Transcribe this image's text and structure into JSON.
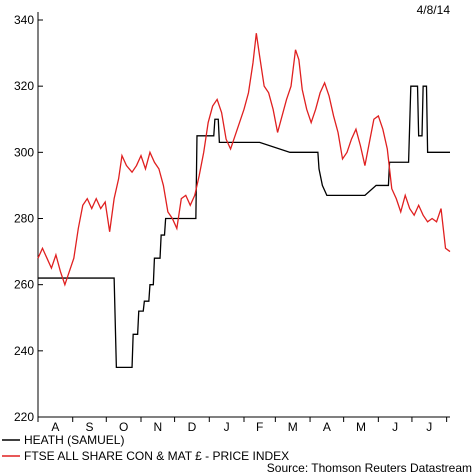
{
  "date_label": "4/8/14",
  "source": "Source: Thomson Reuters Datastream",
  "chart_data": {
    "type": "line",
    "title": "",
    "xlabel": "",
    "ylabel": "",
    "ylim": [
      220,
      340
    ],
    "yticks": [
      220,
      240,
      260,
      280,
      300,
      320,
      340
    ],
    "x_months": [
      "A",
      "S",
      "O",
      "N",
      "D",
      "J",
      "F",
      "M",
      "A",
      "M",
      "J",
      "J"
    ],
    "x_start": "2013-08-01",
    "x_end": "2014-08-04",
    "grid": false,
    "legend_position": "bottom-left",
    "series": [
      {
        "name": "HEATH (SAMUEL)",
        "color": "#000000",
        "step": true,
        "points": [
          [
            "2013-08-01",
            262
          ],
          [
            "2013-09-15",
            262
          ],
          [
            "2013-10-08",
            262
          ],
          [
            "2013-10-10",
            235
          ],
          [
            "2013-10-24",
            235
          ],
          [
            "2013-10-25",
            245
          ],
          [
            "2013-10-29",
            245
          ],
          [
            "2013-10-30",
            252
          ],
          [
            "2013-11-03",
            252
          ],
          [
            "2013-11-04",
            255
          ],
          [
            "2013-11-08",
            255
          ],
          [
            "2013-11-09",
            260
          ],
          [
            "2013-11-12",
            260
          ],
          [
            "2013-11-13",
            268
          ],
          [
            "2013-11-18",
            268
          ],
          [
            "2013-11-19",
            275
          ],
          [
            "2013-11-22",
            275
          ],
          [
            "2013-11-23",
            280
          ],
          [
            "2013-12-20",
            280
          ],
          [
            "2013-12-21",
            305
          ],
          [
            "2014-01-05",
            305
          ],
          [
            "2014-01-06",
            310
          ],
          [
            "2014-01-09",
            310
          ],
          [
            "2014-01-10",
            303
          ],
          [
            "2014-02-15",
            303
          ],
          [
            "2014-03-14",
            300
          ],
          [
            "2014-04-08",
            300
          ],
          [
            "2014-04-09",
            295
          ],
          [
            "2014-04-12",
            290
          ],
          [
            "2014-04-16",
            287
          ],
          [
            "2014-05-20",
            287
          ],
          [
            "2014-05-30",
            290
          ],
          [
            "2014-06-10",
            290
          ],
          [
            "2014-06-11",
            297
          ],
          [
            "2014-06-28",
            297
          ],
          [
            "2014-06-30",
            320
          ],
          [
            "2014-07-06",
            320
          ],
          [
            "2014-07-07",
            305
          ],
          [
            "2014-07-10",
            305
          ],
          [
            "2014-07-11",
            320
          ],
          [
            "2014-07-14",
            320
          ],
          [
            "2014-07-15",
            300
          ],
          [
            "2014-08-04",
            300
          ]
        ]
      },
      {
        "name": "FTSE ALL SHARE CON & MAT £ - PRICE INDEX",
        "color": "#e02020",
        "step": false,
        "points": [
          [
            "2013-08-01",
            268
          ],
          [
            "2013-08-05",
            271
          ],
          [
            "2013-08-09",
            268
          ],
          [
            "2013-08-13",
            265
          ],
          [
            "2013-08-17",
            269
          ],
          [
            "2013-08-21",
            264
          ],
          [
            "2013-08-25",
            260
          ],
          [
            "2013-08-29",
            264
          ],
          [
            "2013-09-02",
            268
          ],
          [
            "2013-09-06",
            277
          ],
          [
            "2013-09-10",
            284
          ],
          [
            "2013-09-14",
            286
          ],
          [
            "2013-09-18",
            283
          ],
          [
            "2013-09-22",
            286
          ],
          [
            "2013-09-26",
            283
          ],
          [
            "2013-09-30",
            285
          ],
          [
            "2013-10-04",
            276
          ],
          [
            "2013-10-08",
            286
          ],
          [
            "2013-10-12",
            292
          ],
          [
            "2013-10-15",
            299
          ],
          [
            "2013-10-19",
            296
          ],
          [
            "2013-10-24",
            294
          ],
          [
            "2013-10-28",
            296
          ],
          [
            "2013-11-01",
            299
          ],
          [
            "2013-11-05",
            295
          ],
          [
            "2013-11-09",
            300
          ],
          [
            "2013-11-13",
            297
          ],
          [
            "2013-11-17",
            295
          ],
          [
            "2013-11-21",
            290
          ],
          [
            "2013-11-25",
            282
          ],
          [
            "2013-11-29",
            280
          ],
          [
            "2013-12-03",
            277
          ],
          [
            "2013-12-07",
            286
          ],
          [
            "2013-12-11",
            287
          ],
          [
            "2013-12-15",
            284
          ],
          [
            "2013-12-19",
            287
          ],
          [
            "2013-12-23",
            293
          ],
          [
            "2013-12-27",
            300
          ],
          [
            "2013-12-31",
            309
          ],
          [
            "2014-01-04",
            314
          ],
          [
            "2014-01-08",
            316
          ],
          [
            "2014-01-12",
            312
          ],
          [
            "2014-01-16",
            304
          ],
          [
            "2014-01-20",
            301
          ],
          [
            "2014-01-24",
            305
          ],
          [
            "2014-01-28",
            309
          ],
          [
            "2014-02-01",
            313
          ],
          [
            "2014-02-05",
            318
          ],
          [
            "2014-02-09",
            327
          ],
          [
            "2014-02-12",
            336
          ],
          [
            "2014-02-15",
            329
          ],
          [
            "2014-02-19",
            320
          ],
          [
            "2014-02-23",
            318
          ],
          [
            "2014-02-27",
            313
          ],
          [
            "2014-03-03",
            306
          ],
          [
            "2014-03-07",
            311
          ],
          [
            "2014-03-11",
            316
          ],
          [
            "2014-03-15",
            320
          ],
          [
            "2014-03-19",
            331
          ],
          [
            "2014-03-22",
            328
          ],
          [
            "2014-03-25",
            319
          ],
          [
            "2014-03-29",
            313
          ],
          [
            "2014-04-02",
            309
          ],
          [
            "2014-04-06",
            313
          ],
          [
            "2014-04-10",
            318
          ],
          [
            "2014-04-14",
            321
          ],
          [
            "2014-04-18",
            317
          ],
          [
            "2014-04-22",
            311
          ],
          [
            "2014-04-26",
            306
          ],
          [
            "2014-04-30",
            298
          ],
          [
            "2014-05-04",
            300
          ],
          [
            "2014-05-08",
            304
          ],
          [
            "2014-05-12",
            307
          ],
          [
            "2014-05-16",
            302
          ],
          [
            "2014-05-20",
            296
          ],
          [
            "2014-05-24",
            303
          ],
          [
            "2014-05-28",
            310
          ],
          [
            "2014-06-01",
            311
          ],
          [
            "2014-06-05",
            307
          ],
          [
            "2014-06-09",
            301
          ],
          [
            "2014-06-13",
            289
          ],
          [
            "2014-06-17",
            286
          ],
          [
            "2014-06-21",
            282
          ],
          [
            "2014-06-25",
            287
          ],
          [
            "2014-06-29",
            283
          ],
          [
            "2014-07-03",
            281
          ],
          [
            "2014-07-07",
            284
          ],
          [
            "2014-07-11",
            281
          ],
          [
            "2014-07-15",
            279
          ],
          [
            "2014-07-19",
            280
          ],
          [
            "2014-07-23",
            279
          ],
          [
            "2014-07-27",
            283
          ],
          [
            "2014-07-31",
            271
          ],
          [
            "2014-08-04",
            270
          ]
        ]
      }
    ]
  }
}
